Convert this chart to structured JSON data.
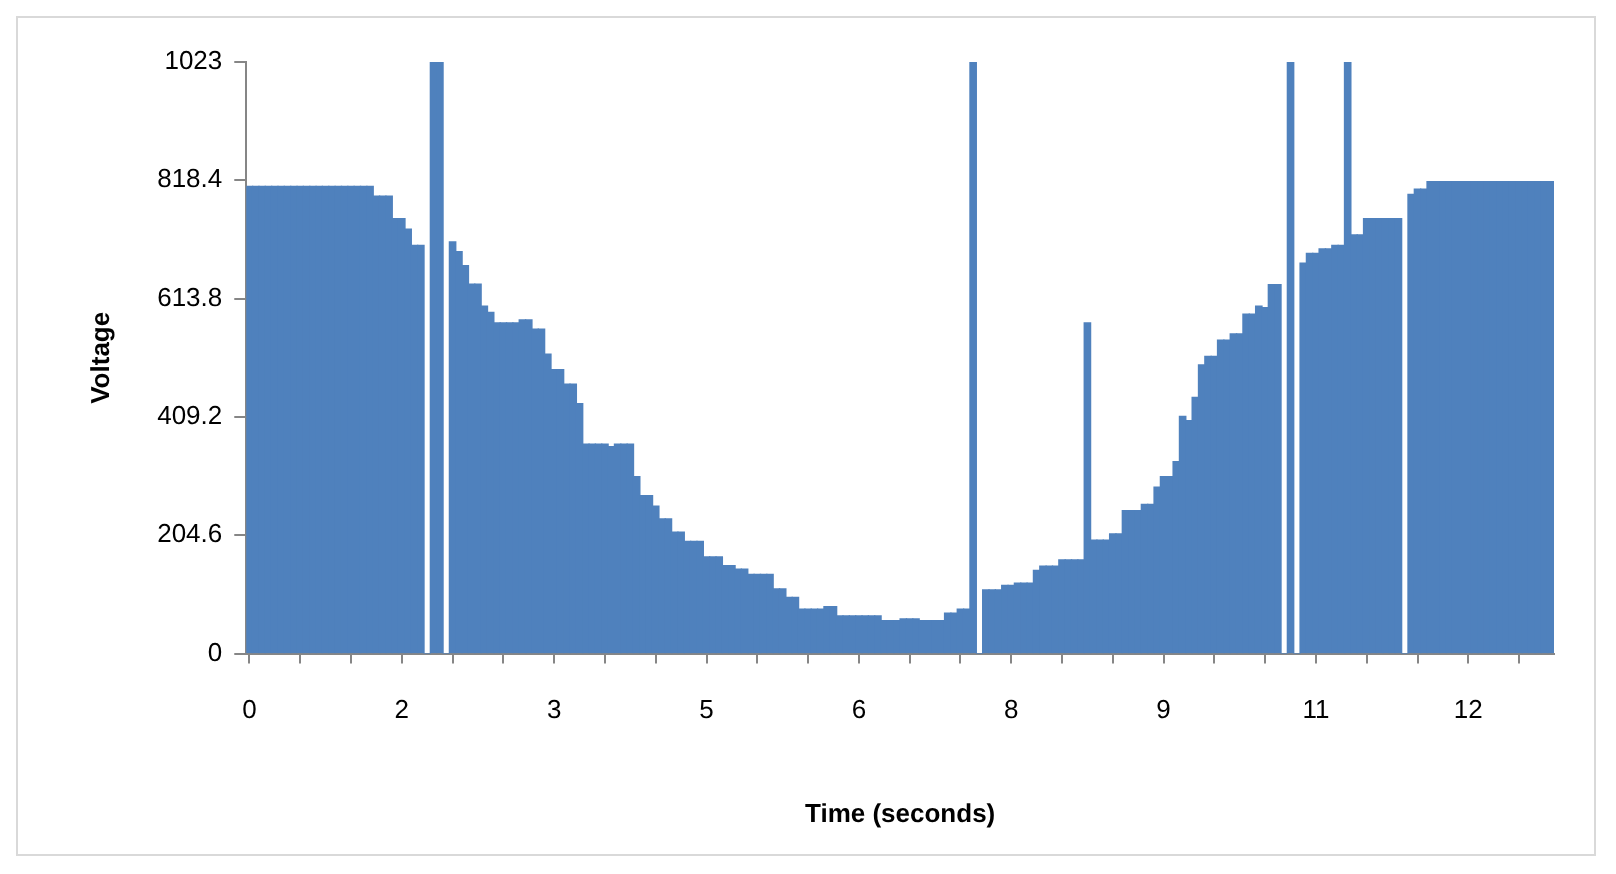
{
  "chart_data": {
    "type": "bar",
    "xlabel": "Time (seconds)",
    "ylabel": "Voltage",
    "color": "#4f81bd",
    "grid": false,
    "ylim": [
      0,
      1023
    ],
    "yticks": [
      0,
      204.6,
      409.2,
      613.8,
      818.4,
      1023
    ],
    "categories": [
      "0",
      null,
      null,
      null,
      null,
      null,
      null,
      null,
      null,
      null,
      null,
      null,
      null,
      null,
      null,
      null,
      null,
      null,
      null,
      null,
      null,
      null,
      null,
      null,
      "2",
      null,
      null,
      null,
      null,
      null,
      null,
      null,
      null,
      null,
      null,
      null,
      null,
      null,
      null,
      null,
      null,
      null,
      null,
      null,
      null,
      null,
      null,
      null,
      "3",
      null,
      null,
      null,
      null,
      null,
      null,
      null,
      null,
      null,
      null,
      null,
      null,
      null,
      null,
      null,
      null,
      null,
      null,
      null,
      null,
      null,
      null,
      null,
      "5",
      null,
      null,
      null,
      null,
      null,
      null,
      null,
      null,
      null,
      null,
      null,
      null,
      null,
      null,
      null,
      null,
      null,
      null,
      null,
      null,
      null,
      null,
      null,
      "6",
      null,
      null,
      null,
      null,
      null,
      null,
      null,
      null,
      null,
      null,
      null,
      null,
      null,
      null,
      null,
      null,
      null,
      null,
      null,
      null,
      null,
      null,
      null,
      "8",
      null,
      null,
      null,
      null,
      null,
      null,
      null,
      null,
      null,
      null,
      null,
      null,
      null,
      null,
      null,
      null,
      null,
      null,
      null,
      null,
      null,
      null,
      null,
      "9",
      null,
      null,
      null,
      null,
      null,
      null,
      null,
      null,
      null,
      null,
      null,
      null,
      null,
      null,
      null,
      null,
      null,
      null,
      null,
      null,
      null,
      null,
      null,
      "11",
      null,
      null,
      null,
      null,
      null,
      null,
      null,
      null,
      null,
      null,
      null,
      null,
      null,
      null,
      null,
      null,
      null,
      null,
      null,
      null,
      null,
      null,
      null,
      "12",
      null,
      null,
      null,
      null,
      null,
      null,
      null,
      null,
      null,
      null,
      null,
      null,
      null
    ],
    "values": [
      808,
      808,
      808,
      808,
      808,
      808,
      808,
      808,
      808,
      808,
      808,
      808,
      808,
      808,
      808,
      808,
      808,
      808,
      808,
      808,
      791,
      791,
      791,
      752,
      752,
      734,
      706,
      706,
      0,
      1023,
      1023,
      0,
      712,
      695,
      671,
      639,
      639,
      601,
      590,
      572,
      572,
      572,
      572,
      577,
      577,
      561,
      561,
      518,
      491,
      491,
      466,
      466,
      432,
      362,
      362,
      362,
      362,
      358,
      362,
      362,
      362,
      306,
      273,
      273,
      255,
      233,
      233,
      210,
      210,
      194,
      194,
      194,
      167,
      167,
      167,
      152,
      152,
      146,
      146,
      137,
      137,
      137,
      137,
      112,
      112,
      97,
      97,
      77,
      77,
      77,
      77,
      81,
      81,
      65,
      65,
      65,
      65,
      65,
      65,
      65,
      57,
      57,
      57,
      60,
      60,
      60,
      57,
      57,
      57,
      57,
      70,
      70,
      77,
      77,
      1023,
      0,
      110,
      110,
      110,
      118,
      118,
      122,
      122,
      122,
      144,
      151,
      151,
      151,
      162,
      162,
      162,
      162,
      572,
      196,
      196,
      196,
      207,
      207,
      247,
      247,
      247,
      258,
      258,
      288,
      306,
      306,
      332,
      410,
      403,
      443,
      499,
      514,
      514,
      542,
      542,
      553,
      553,
      587,
      587,
      601,
      598,
      638,
      638,
      0,
      1023,
      0,
      675,
      692,
      692,
      700,
      700,
      706,
      706,
      1023,
      724,
      724,
      752,
      752,
      752,
      752,
      752,
      752,
      0,
      794,
      803,
      803,
      816,
      816,
      816,
      816,
      816,
      816,
      816,
      816,
      816,
      816,
      816,
      816,
      816,
      816,
      816,
      816,
      816,
      816,
      816,
      816
    ]
  }
}
